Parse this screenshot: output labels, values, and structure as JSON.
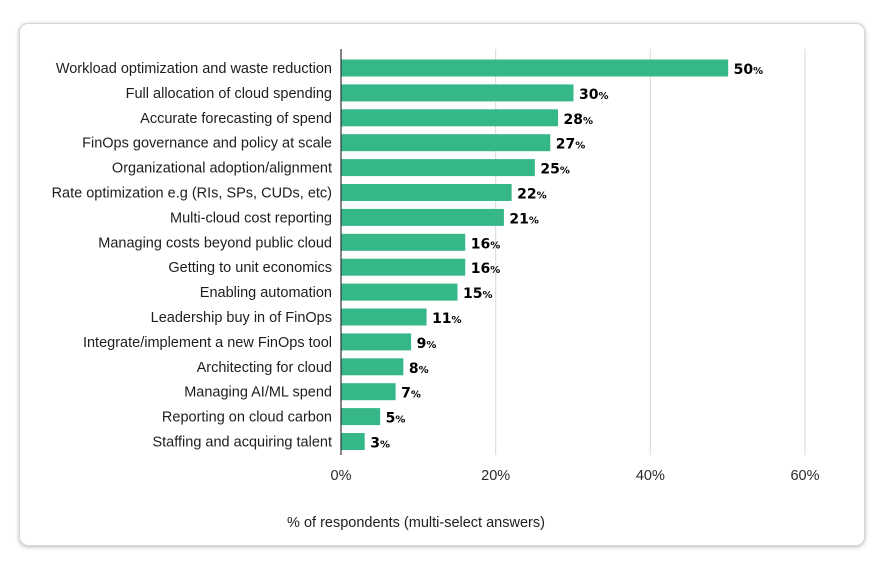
{
  "chart_data": {
    "type": "bar",
    "orientation": "horizontal",
    "title": "",
    "xlabel": "% of respondents (multi-select answers)",
    "ylabel": "",
    "xlim": [
      0,
      60
    ],
    "xticks": [
      0,
      20,
      40,
      60
    ],
    "xtick_labels": [
      "0%",
      "20%",
      "40%",
      "60%"
    ],
    "value_suffix": "%",
    "bar_color": "#35b787",
    "grid": "vertical",
    "categories": [
      "Workload optimization and waste reduction",
      "Full allocation of cloud spending",
      "Accurate forecasting of spend",
      "FinOps governance and policy at scale",
      "Organizational adoption/alignment",
      "Rate optimization e.g (RIs, SPs, CUDs, etc)",
      "Multi-cloud cost reporting",
      "Managing costs beyond public cloud",
      "Getting to unit economics",
      "Enabling automation",
      "Leadership buy in of FinOps",
      "Integrate/implement a new FinOps tool",
      "Architecting for cloud",
      "Managing AI/ML spend",
      "Reporting on cloud carbon",
      "Staffing and acquiring talent"
    ],
    "values": [
      50,
      30,
      28,
      27,
      25,
      22,
      21,
      16,
      16,
      15,
      11,
      9,
      8,
      7,
      5,
      3
    ]
  }
}
